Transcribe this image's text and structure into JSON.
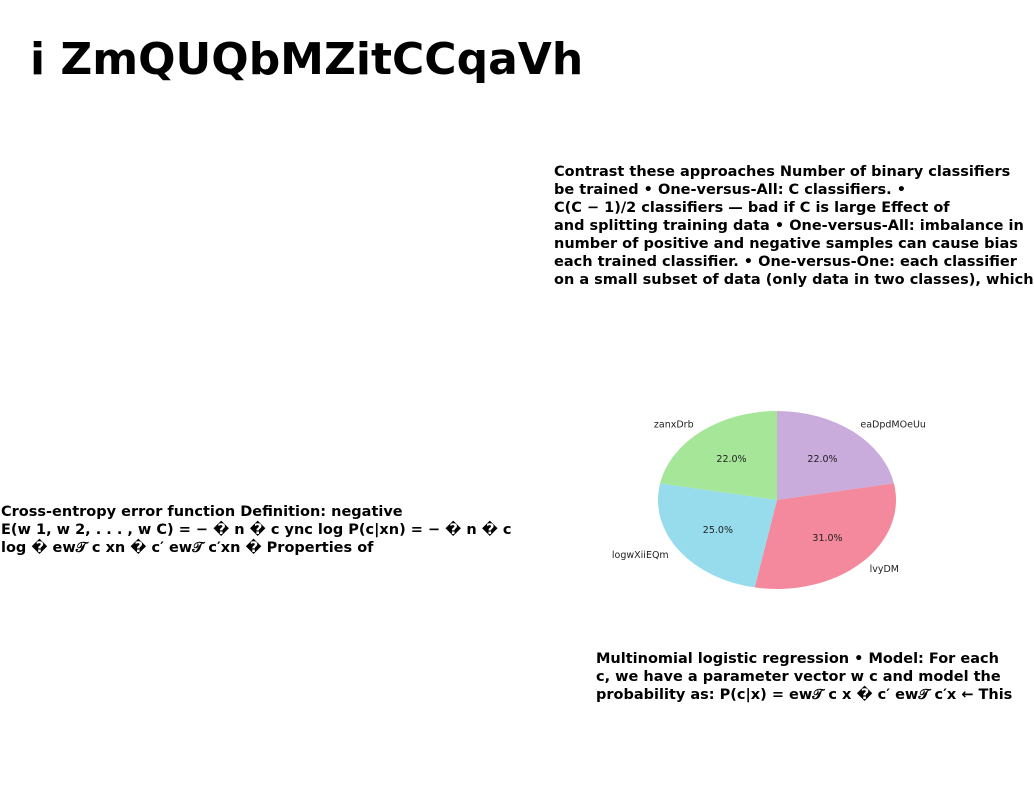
{
  "page": {
    "title": "i ZmQUQbMZitCCqaVh"
  },
  "text_blocks": {
    "top": [
      "Contrast these approaches Number of binary classifiers",
      "be trained • One-versus-All: C classifiers. •",
      "C(C − 1)/2 classifiers — bad if C is large Effect of",
      "and splitting training data • One-versus-All: imbalance in",
      "number of positive and negative samples can cause bias",
      "each trained classifier. • One-versus-One: each classifier",
      "on a small subset of data (only data in two classes), which"
    ],
    "left": [
      "Cross-entropy error function Definition: negative",
      "E(w 1, w 2, . . . , w C) = − � n � c ync log P(c|xn) = − � n � c",
      "log � ew𝒯 c xn � c′ ew𝒯 c′xn � Properties of"
    ],
    "bottom": [
      "Multinomial logistic regression • Model: For each",
      "c, we have a parameter vector w c and model the",
      "probability as: P(c|x) = ew𝒯 c x � c′ ew𝒯 c′x ← This"
    ]
  },
  "chart_data": {
    "type": "pie",
    "start_angle_deg": 90,
    "direction": "clockwise",
    "slices": [
      {
        "label": "eaDpdMOeUu",
        "value": 22.0,
        "pct_label": "22.0%",
        "color": "#c9abdc"
      },
      {
        "label": "lvyDM",
        "value": 31.0,
        "pct_label": "31.0%",
        "color": "#f4889c"
      },
      {
        "label": "logwXiiEQm",
        "value": 25.0,
        "pct_label": "25.0%",
        "color": "#96dcec"
      },
      {
        "label": "zanxDrb",
        "value": 22.0,
        "pct_label": "22.0%",
        "color": "#a6e699"
      }
    ],
    "title": ""
  }
}
